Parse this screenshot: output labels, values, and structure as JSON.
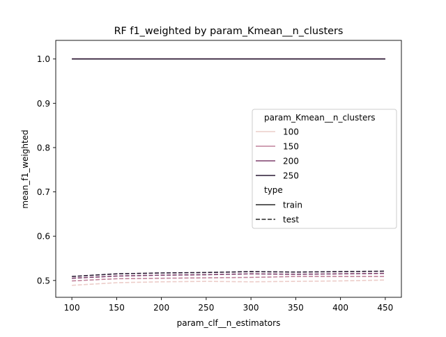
{
  "chart_data": {
    "type": "line",
    "title": "RF f1_weighted by param_Kmean__n_clusters",
    "xlabel": "param_clf__n_estimators",
    "ylabel": "mean_f1_weighted",
    "xlim": [
      82,
      468
    ],
    "ylim": [
      0.462,
      1.042
    ],
    "xticks": [
      100,
      150,
      200,
      250,
      300,
      350,
      400,
      450
    ],
    "yticks": [
      0.5,
      0.6,
      0.7,
      0.8,
      0.9,
      1.0
    ],
    "ytick_labels": [
      "0.5",
      "0.6",
      "0.7",
      "0.8",
      "0.9",
      "1.0"
    ],
    "grid": false,
    "legend_placement": "center-right",
    "x": [
      100,
      150,
      200,
      250,
      300,
      350,
      400,
      450
    ],
    "hue": {
      "title": "param_Kmean__n_clusters",
      "levels": [
        {
          "label": "100",
          "color": "#eccdc9"
        },
        {
          "label": "150",
          "color": "#c0819a"
        },
        {
          "label": "200",
          "color": "#7d3e6c"
        },
        {
          "label": "250",
          "color": "#2a1a33"
        }
      ]
    },
    "style": {
      "title": "type",
      "levels": [
        {
          "label": "train",
          "dash": "solid"
        },
        {
          "label": "test",
          "dash": "dashed"
        }
      ]
    },
    "series": [
      {
        "name": "100",
        "type": "train",
        "values": [
          1.0,
          1.0,
          1.0,
          1.0,
          1.0,
          1.0,
          1.0,
          1.0
        ]
      },
      {
        "name": "150",
        "type": "train",
        "values": [
          1.0,
          1.0,
          1.0,
          1.0,
          1.0,
          1.0,
          1.0,
          1.0
        ]
      },
      {
        "name": "200",
        "type": "train",
        "values": [
          1.0,
          1.0,
          1.0,
          1.0,
          1.0,
          1.0,
          1.0,
          1.0
        ]
      },
      {
        "name": "250",
        "type": "train",
        "values": [
          1.0,
          1.0,
          1.0,
          1.0,
          1.0,
          1.0,
          1.0,
          1.0
        ]
      },
      {
        "name": "100",
        "type": "test",
        "values": [
          0.489,
          0.495,
          0.497,
          0.498,
          0.497,
          0.498,
          0.499,
          0.501
        ]
      },
      {
        "name": "150",
        "type": "test",
        "values": [
          0.499,
          0.504,
          0.505,
          0.506,
          0.507,
          0.509,
          0.509,
          0.509
        ]
      },
      {
        "name": "200",
        "type": "test",
        "values": [
          0.505,
          0.51,
          0.512,
          0.513,
          0.515,
          0.514,
          0.515,
          0.516
        ]
      },
      {
        "name": "250",
        "type": "test",
        "values": [
          0.509,
          0.515,
          0.517,
          0.518,
          0.52,
          0.519,
          0.52,
          0.521
        ]
      }
    ]
  }
}
